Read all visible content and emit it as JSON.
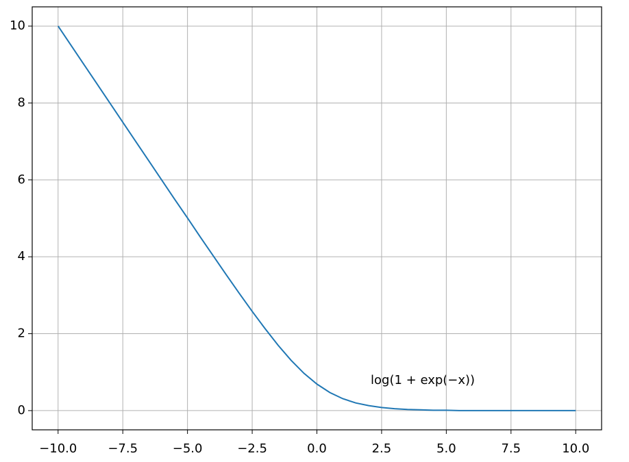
{
  "chart_data": {
    "type": "line",
    "annotation": "log(1 + exp(−x))",
    "x": [
      -10,
      -9.5,
      -9,
      -8.5,
      -8,
      -7.5,
      -7,
      -6.5,
      -6,
      -5.5,
      -5,
      -4.5,
      -4,
      -3.5,
      -3,
      -2.5,
      -2,
      -1.5,
      -1,
      -0.5,
      0,
      0.5,
      1,
      1.5,
      2,
      2.5,
      3,
      3.5,
      4,
      4.5,
      5,
      5.5,
      6,
      6.5,
      7,
      7.5,
      8,
      8.5,
      9,
      9.5,
      10
    ],
    "values": [
      10.0,
      9.5,
      9.0,
      8.5,
      8.0,
      7.5,
      7.0,
      6.5,
      6.0,
      5.5,
      5.01,
      4.51,
      4.02,
      3.53,
      3.05,
      2.58,
      2.13,
      1.7,
      1.31,
      0.97,
      0.69,
      0.47,
      0.31,
      0.2,
      0.13,
      0.08,
      0.05,
      0.03,
      0.02,
      0.01,
      0.01,
      0,
      0,
      0,
      0,
      0,
      0,
      0,
      0,
      0,
      0
    ],
    "color": "#1f77b4",
    "xlim": [
      -11,
      11
    ],
    "ylim": [
      -0.5,
      10.5
    ],
    "xticks": [
      {
        "value": -10,
        "label": "−10.0"
      },
      {
        "value": -7.5,
        "label": "−7.5"
      },
      {
        "value": -5,
        "label": "−5.0"
      },
      {
        "value": -2.5,
        "label": "−2.5"
      },
      {
        "value": 0,
        "label": "0.0"
      },
      {
        "value": 2.5,
        "label": "2.5"
      },
      {
        "value": 5,
        "label": "5.0"
      },
      {
        "value": 7.5,
        "label": "7.5"
      },
      {
        "value": 10,
        "label": "10.0"
      }
    ],
    "yticks": [
      0,
      2,
      4,
      6,
      8,
      10
    ],
    "grid": true
  }
}
